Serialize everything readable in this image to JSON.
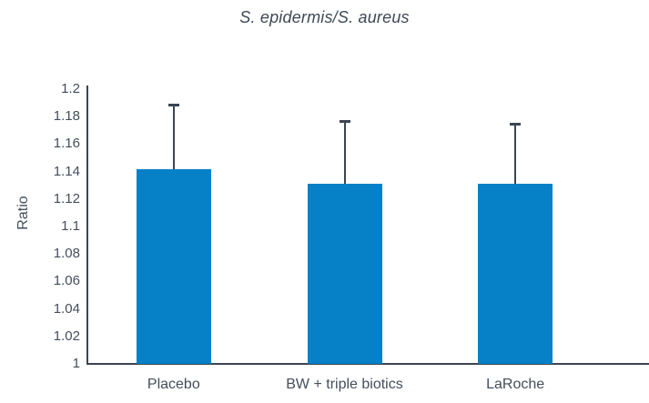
{
  "chart_data": {
    "type": "bar",
    "title": "S. epidermis/S. aureus",
    "xlabel": "",
    "ylabel": "Ratio",
    "categories": [
      "Placebo",
      "BW + triple biotics",
      "LaRoche"
    ],
    "values": [
      1.142,
      1.131,
      1.131
    ],
    "error_tops": [
      1.189,
      1.177,
      1.175
    ],
    "ylim": [
      1,
      1.2
    ],
    "ytick_step": 0.02,
    "ytick_labels": [
      "1",
      "1.02",
      "1.04",
      "1.06",
      "1.08",
      "1.1",
      "1.12",
      "1.14",
      "1.16",
      "1.18",
      "1.2"
    ],
    "grid": false,
    "legend": "none",
    "colors": {
      "bar": "#0680C7",
      "axis": "#3B4552",
      "error_bar": "#3B4552",
      "tick_text": "#434E5B",
      "title_text": "#3E4956"
    }
  }
}
